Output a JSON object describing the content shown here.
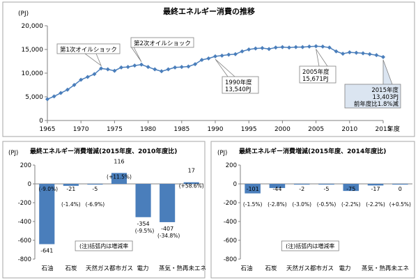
{
  "chart_data": [
    {
      "type": "line",
      "title": "最終エネルギー消費の推移",
      "unit_label": "(PJ)",
      "xlabel_suffix": "年度",
      "ylim": [
        0,
        20000
      ],
      "yticks": [
        "0",
        "5,000",
        "10,000",
        "15,000",
        "20,000"
      ],
      "xticks": [
        "1965",
        "1970",
        "1975",
        "1980",
        "1985",
        "1990",
        "1995",
        "2000",
        "2005",
        "2010",
        "2015"
      ],
      "x": [
        1965,
        1966,
        1967,
        1968,
        1969,
        1970,
        1971,
        1972,
        1973,
        1974,
        1975,
        1976,
        1977,
        1978,
        1979,
        1980,
        1981,
        1982,
        1983,
        1984,
        1985,
        1986,
        1987,
        1988,
        1989,
        1990,
        1991,
        1992,
        1993,
        1994,
        1995,
        1996,
        1997,
        1998,
        1999,
        2000,
        2001,
        2002,
        2003,
        2004,
        2005,
        2006,
        2007,
        2008,
        2009,
        2010,
        2011,
        2012,
        2013,
        2014,
        2015
      ],
      "values": [
        4500,
        5100,
        5800,
        6500,
        7500,
        8600,
        9200,
        9800,
        11000,
        10800,
        10500,
        11200,
        11300,
        11600,
        11800,
        11300,
        10800,
        10400,
        10800,
        11200,
        11300,
        11400,
        11900,
        12800,
        13100,
        13540,
        13700,
        13900,
        14000,
        14600,
        15000,
        15200,
        15300,
        15100,
        15400,
        15500,
        15400,
        15500,
        15500,
        15600,
        15671,
        15600,
        15400,
        14600,
        14100,
        14400,
        14300,
        14200,
        14000,
        13800,
        13403
      ],
      "color": "#4a7ebb",
      "annotations": [
        {
          "year": 1973,
          "lines": [
            "第1次オイルショック"
          ]
        },
        {
          "year": 1979,
          "lines": [
            "第2次オイルショック"
          ]
        },
        {
          "year": 1990,
          "lines": [
            "1990年度",
            "13,540PJ"
          ]
        },
        {
          "year": 2005,
          "lines": [
            "2005年度",
            "15,671PJ"
          ]
        },
        {
          "year": 2015,
          "lines": [
            "2015年度",
            "13,403PJ",
            "前年度比1.8%減"
          ]
        }
      ]
    },
    {
      "type": "bar",
      "title": "最終エネルギー消費増減(2015年度、2010年度比)",
      "unit_label": "(PJ)",
      "ylim": [
        -800,
        200
      ],
      "yticks": [
        "200",
        "0",
        "-200",
        "-400",
        "-600",
        "-800"
      ],
      "categories": [
        "石油",
        "石炭",
        "天然ガス",
        "都市ガス",
        "電力",
        "蒸気・熱",
        "再未エネ"
      ],
      "category_labels": [
        "石油",
        "石炭",
        "天然ガス都市ガス",
        "電力",
        "蒸気・熱再未エネ"
      ],
      "values": [
        -641,
        -21,
        -5,
        116,
        -354,
        -407,
        17
      ],
      "value_labels": [
        "-641",
        "-21",
        "-5",
        "116",
        "-354",
        "-407",
        "17"
      ],
      "pct_labels": [
        "(-9.0%)",
        "(-1.4%)",
        "(-6.9%)",
        "(+11.5%)",
        "(-9.5%)",
        "(-34.8%)",
        "(+58.6%)"
      ],
      "note": "(注)括弧内は増減率",
      "color": "#4a7ebb"
    },
    {
      "type": "bar",
      "title": "最終エネルギー消費増減(2015年度、2014年度比)",
      "unit_label": "(PJ)",
      "ylim": [
        -800,
        200
      ],
      "yticks": [
        "200",
        "0",
        "-200",
        "-400",
        "-600",
        "-800"
      ],
      "categories": [
        "石油",
        "石炭",
        "天然ガス",
        "都市ガス",
        "電力",
        "蒸気・熱",
        "再未エネ"
      ],
      "category_labels": [
        "石油",
        "石炭",
        "天然ガス都市ガス",
        "電力",
        "蒸気・熱再未エネ"
      ],
      "values": [
        -101,
        -44,
        -2,
        -5,
        -75,
        -17,
        0
      ],
      "value_labels": [
        "-101",
        "-44",
        "-2",
        "-5",
        "-75",
        "-17",
        "0"
      ],
      "pct_labels": [
        "(-1.5%)",
        "(-2.8%)",
        "(-3.0%)",
        "(-0.5%)",
        "(-2.2%)",
        "(-2.2%)",
        "(+0.5%)"
      ],
      "note": "(注)括弧内は増減率",
      "color": "#4a7ebb"
    }
  ]
}
